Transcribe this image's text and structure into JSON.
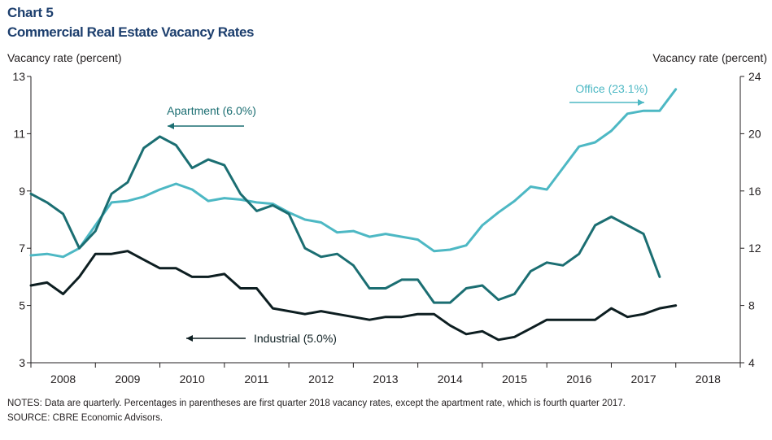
{
  "header": {
    "chart_number": "Chart 5",
    "title": "Commercial Real Estate Vacancy Rates"
  },
  "footer": {
    "notes": "NOTES: Data are quarterly. Percentages in parentheses are first quarter 2018 vacancy rates, except the apartment rate, which is fourth quarter 2017.",
    "source": "SOURCE: CBRE Economic Advisors."
  },
  "colors": {
    "apartment": "#1b6e72",
    "office": "#4db8c4",
    "industrial": "#0d1e21",
    "title": "#1d3f6e",
    "axis": "#231f20"
  },
  "chart_data": {
    "type": "line",
    "title": "Commercial Real Estate Vacancy Rates",
    "ylabel_left": "Vacancy rate (percent)",
    "ylabel_right": "Vacancy rate (percent)",
    "ylim_left": [
      3,
      13
    ],
    "yticks_left": [
      "3",
      "5",
      "7",
      "9",
      "11",
      "13"
    ],
    "ylim_right": [
      4,
      24
    ],
    "yticks_right": [
      "4",
      "8",
      "12",
      "16",
      "20",
      "24"
    ],
    "xlim": [
      2008.0,
      2019.0
    ],
    "categories": [
      "2008",
      "2009",
      "2010",
      "2011",
      "2012",
      "2013",
      "2014",
      "2015",
      "2016",
      "2017",
      "2018"
    ],
    "grid": false,
    "series": [
      {
        "name": "Apartment",
        "label": "Apartment (6.0%)",
        "axis": "left",
        "x": [
          2008.0,
          2008.25,
          2008.5,
          2008.75,
          2009.0,
          2009.25,
          2009.5,
          2009.75,
          2010.0,
          2010.25,
          2010.5,
          2010.75,
          2011.0,
          2011.25,
          2011.5,
          2011.75,
          2012.0,
          2012.25,
          2012.5,
          2012.75,
          2013.0,
          2013.25,
          2013.5,
          2013.75,
          2014.0,
          2014.25,
          2014.5,
          2014.75,
          2015.0,
          2015.25,
          2015.5,
          2015.75,
          2016.0,
          2016.25,
          2016.5,
          2016.75,
          2017.0,
          2017.25,
          2017.5,
          2017.75
        ],
        "values": [
          8.9,
          8.6,
          8.2,
          7.0,
          7.6,
          8.9,
          9.3,
          10.5,
          10.9,
          10.6,
          9.8,
          10.1,
          9.9,
          8.9,
          8.3,
          8.5,
          8.2,
          7.0,
          6.7,
          6.8,
          6.4,
          5.6,
          5.6,
          5.9,
          5.9,
          5.1,
          5.1,
          5.6,
          5.7,
          5.2,
          5.4,
          6.2,
          6.5,
          6.4,
          6.8,
          7.8,
          8.1,
          7.8,
          7.5,
          6.0
        ]
      },
      {
        "name": "Office",
        "label": "Office (23.1%)",
        "axis": "right",
        "x": [
          2008.0,
          2008.25,
          2008.5,
          2008.75,
          2009.0,
          2009.25,
          2009.5,
          2009.75,
          2010.0,
          2010.25,
          2010.5,
          2010.75,
          2011.0,
          2011.25,
          2011.5,
          2011.75,
          2012.0,
          2012.25,
          2012.5,
          2012.75,
          2013.0,
          2013.25,
          2013.5,
          2013.75,
          2014.0,
          2014.25,
          2014.5,
          2014.75,
          2015.0,
          2015.25,
          2015.5,
          2015.75,
          2016.0,
          2016.25,
          2016.5,
          2016.75,
          2017.0,
          2017.25,
          2017.5,
          2017.75,
          2018.0
        ],
        "values": [
          11.5,
          11.6,
          11.4,
          12.0,
          13.6,
          15.2,
          15.3,
          15.6,
          16.1,
          16.5,
          16.1,
          15.3,
          15.5,
          15.4,
          15.2,
          15.1,
          14.5,
          14.0,
          13.8,
          13.1,
          13.2,
          12.8,
          13.0,
          12.8,
          12.6,
          11.8,
          11.9,
          12.2,
          13.6,
          14.5,
          15.3,
          16.3,
          16.1,
          17.6,
          19.1,
          19.4,
          20.2,
          21.4,
          21.6,
          21.6,
          23.1
        ]
      },
      {
        "name": "Industrial",
        "label": "Industrial (5.0%)",
        "axis": "left",
        "x": [
          2008.0,
          2008.25,
          2008.5,
          2008.75,
          2009.0,
          2009.25,
          2009.5,
          2009.75,
          2010.0,
          2010.25,
          2010.5,
          2010.75,
          2011.0,
          2011.25,
          2011.5,
          2011.75,
          2012.0,
          2012.25,
          2012.5,
          2012.75,
          2013.0,
          2013.25,
          2013.5,
          2013.75,
          2014.0,
          2014.25,
          2014.5,
          2014.75,
          2015.0,
          2015.25,
          2015.5,
          2015.75,
          2016.0,
          2016.25,
          2016.5,
          2016.75,
          2017.0,
          2017.25,
          2017.5,
          2017.75,
          2018.0
        ],
        "values": [
          5.7,
          5.8,
          5.4,
          6.0,
          6.8,
          6.8,
          6.9,
          6.6,
          6.3,
          6.3,
          6.0,
          6.0,
          6.1,
          5.6,
          5.6,
          4.9,
          4.8,
          4.7,
          4.8,
          4.7,
          4.6,
          4.5,
          4.6,
          4.6,
          4.7,
          4.7,
          4.3,
          4.0,
          4.1,
          3.8,
          3.9,
          4.2,
          4.5,
          4.5,
          4.5,
          4.5,
          4.9,
          4.6,
          4.7,
          4.9,
          5.0
        ]
      }
    ]
  }
}
